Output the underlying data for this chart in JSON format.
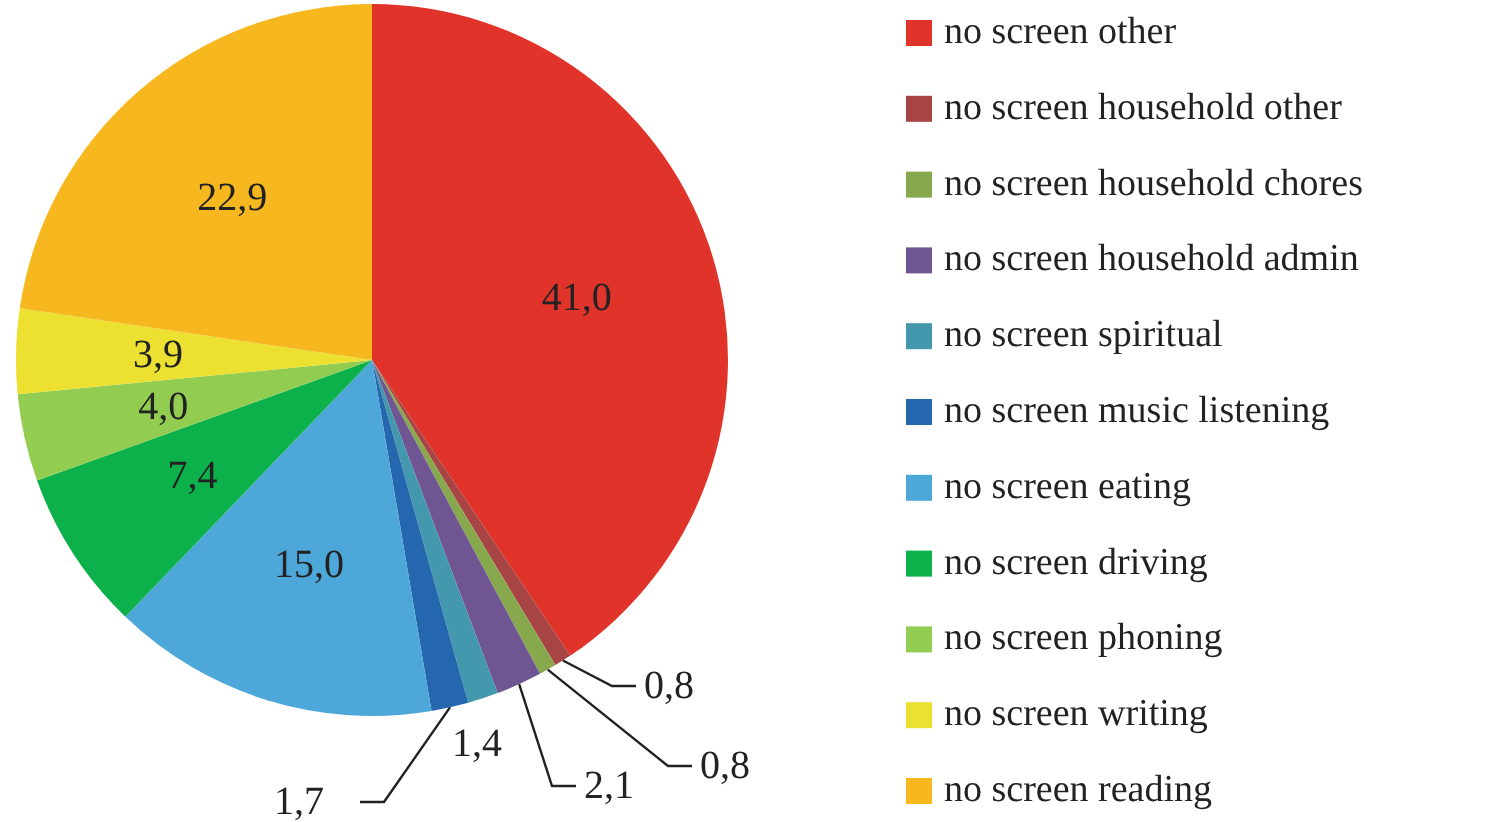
{
  "chart_data": {
    "type": "pie",
    "categories": [
      "no screen other",
      "no screen household other",
      "no screen household chores",
      "no screen household admin",
      "no screen spiritual",
      "no screen music listening",
      "no screen eating",
      "no screen driving",
      "no screen phoning",
      "no screen writing",
      "no screen reading"
    ],
    "values": [
      41.0,
      0.8,
      0.8,
      2.1,
      1.4,
      1.7,
      15.0,
      7.4,
      4.0,
      3.9,
      22.9
    ],
    "value_labels": [
      "41,0",
      "0,8",
      "0,8",
      "2,1",
      "1,4",
      "1,7",
      "15,0",
      "7,4",
      "4,0",
      "3,9",
      "22,9"
    ],
    "colors": [
      "#e0342a",
      "#a84444",
      "#87a84c",
      "#6f5591",
      "#4398ad",
      "#2467ae",
      "#4ea7d9",
      "#0db14b",
      "#92cd52",
      "#ece031",
      "#f7b71f"
    ],
    "legend": "right"
  }
}
